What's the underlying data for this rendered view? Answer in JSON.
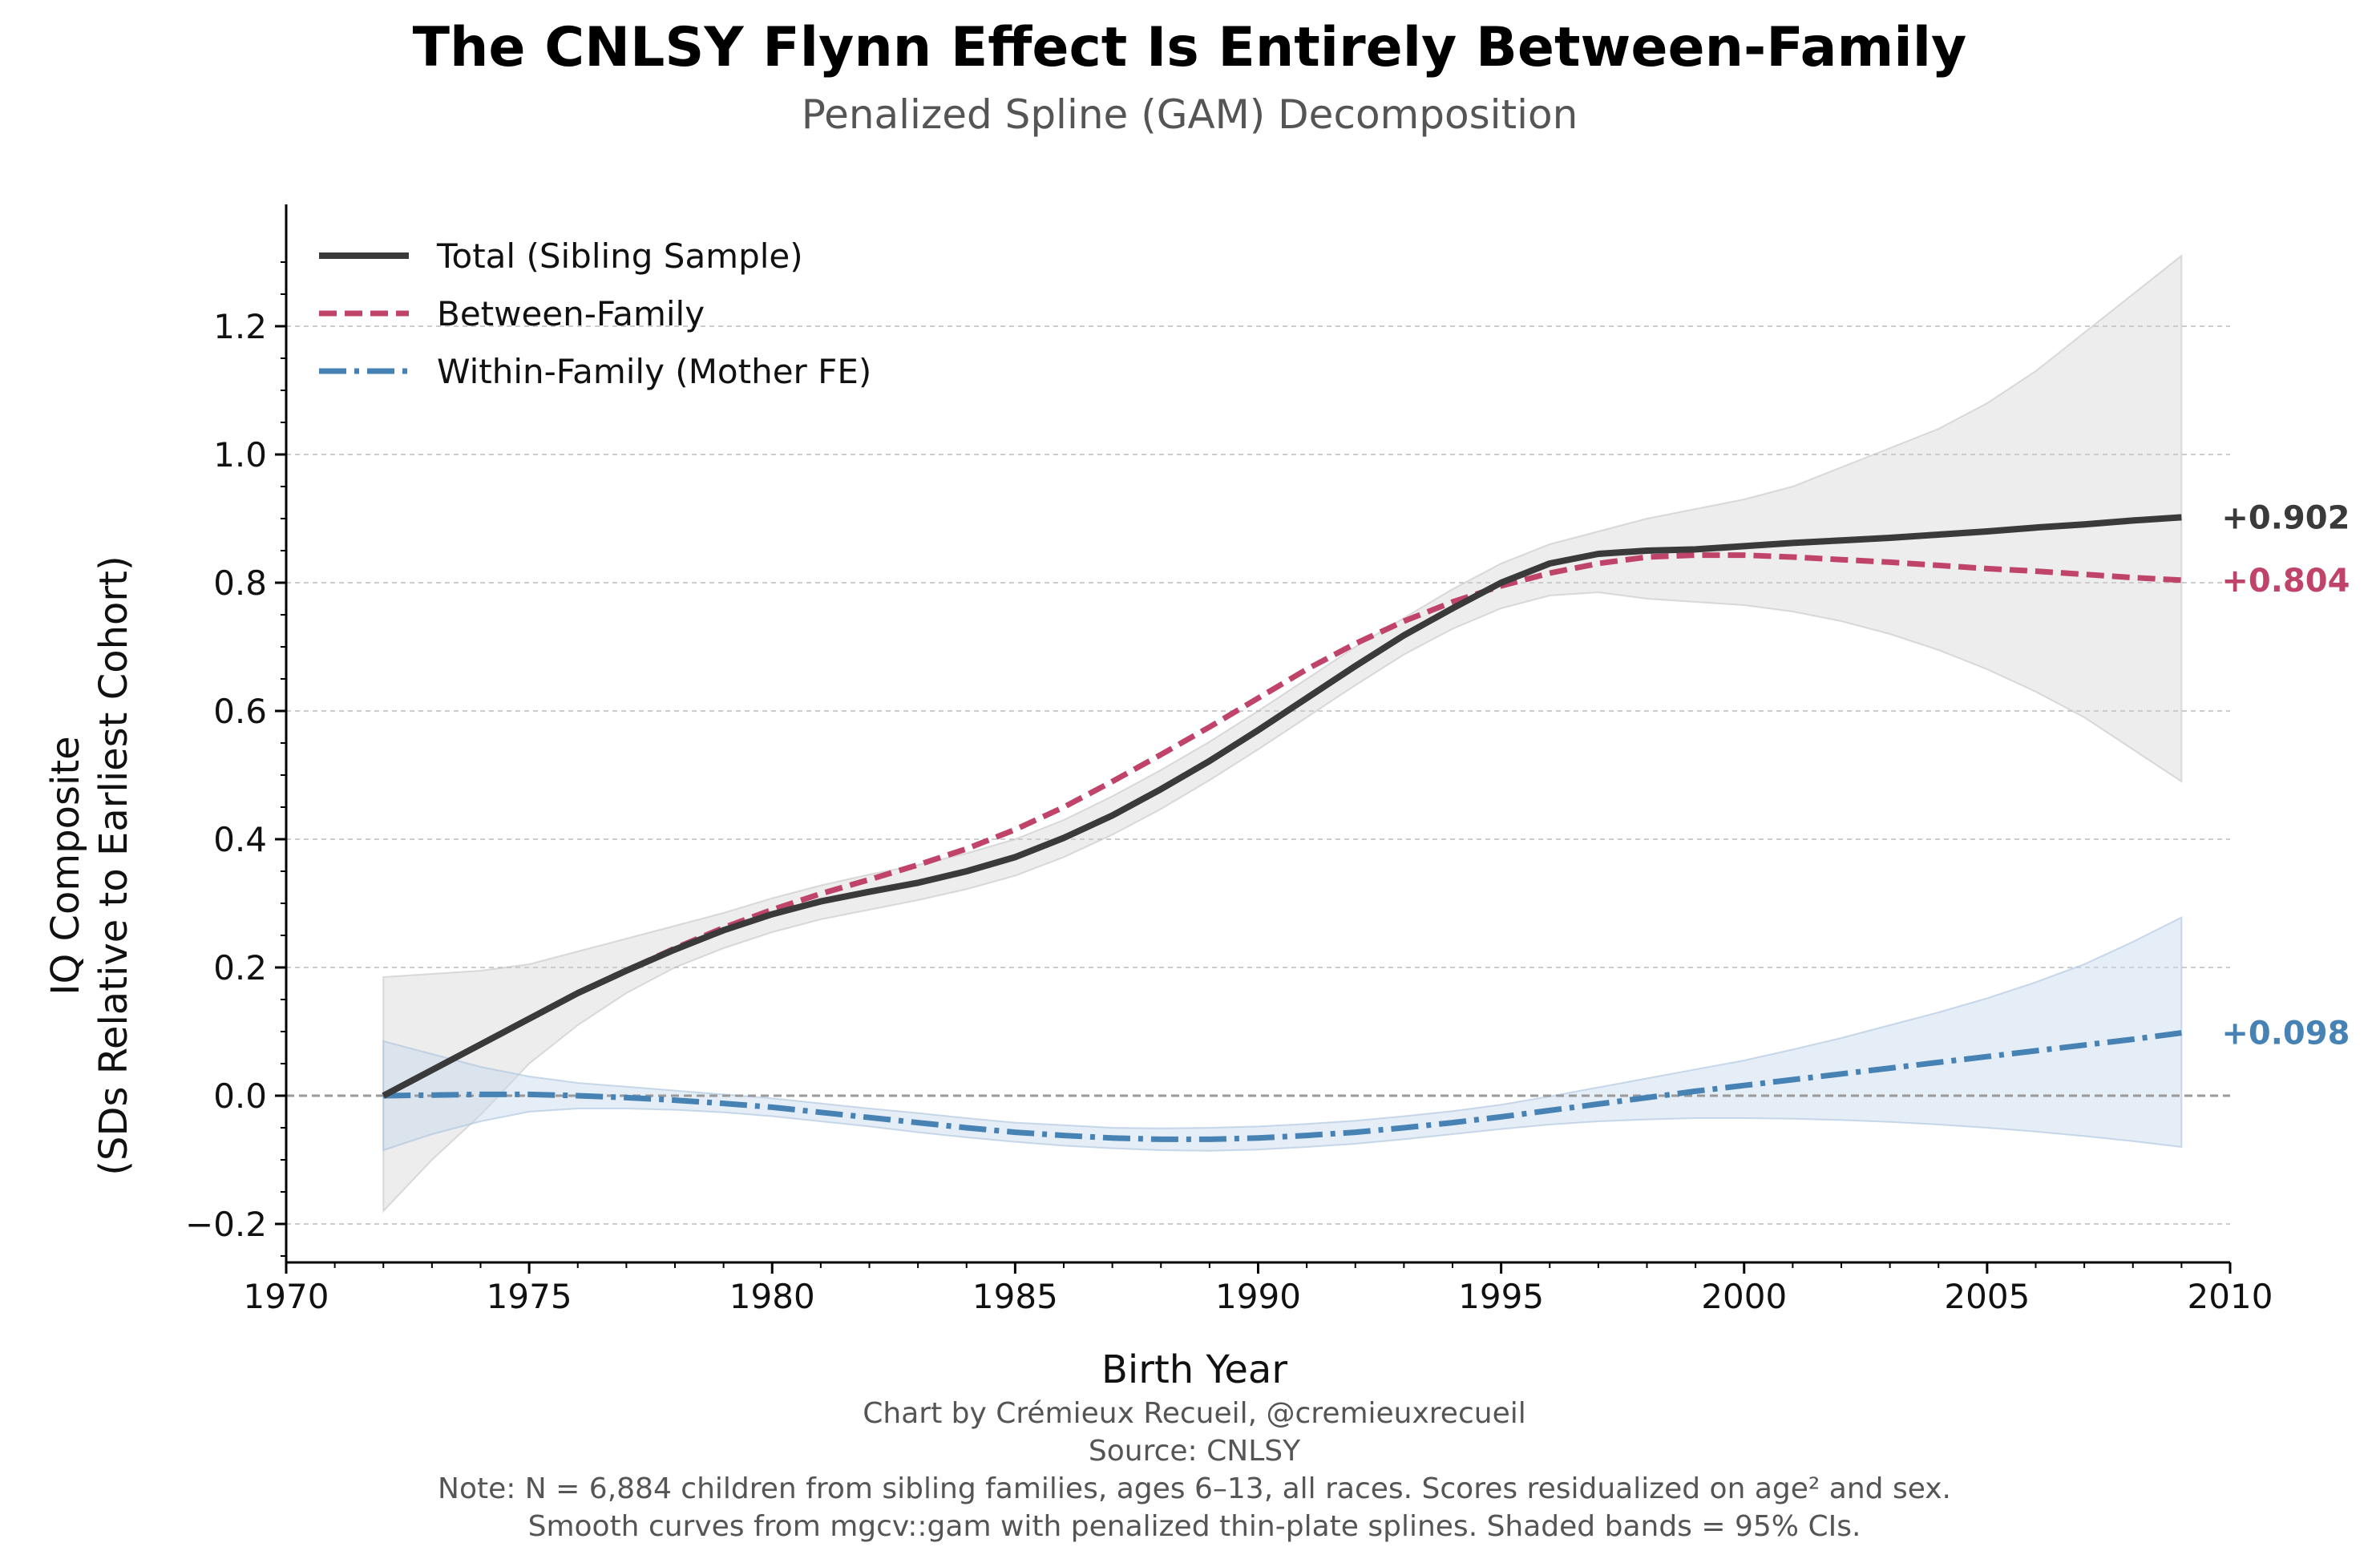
{
  "chart_data": {
    "type": "line",
    "title": "The CNLSY Flynn Effect Is Entirely Between-Family",
    "subtitle": "Penalized Spline (GAM) Decomposition",
    "xlabel": "Birth Year",
    "ylabel_line1": "IQ Composite",
    "ylabel_line2": "(SDs Relative to Earliest Cohort)",
    "xlim": [
      1970,
      2010
    ],
    "ylim": [
      -0.26,
      1.39
    ],
    "x_ticks": [
      1970,
      1975,
      1980,
      1985,
      1990,
      1995,
      2000,
      2005,
      2010
    ],
    "y_ticks": [
      -0.2,
      0.0,
      0.2,
      0.4,
      0.6,
      0.8,
      1.0,
      1.2
    ],
    "y_tick_labels": [
      "−0.2",
      "0.0",
      "0.2",
      "0.4",
      "0.6",
      "0.8",
      "1.0",
      "1.2"
    ],
    "grid": "horizontal dashed",
    "legend_position": "top-left",
    "colors": {
      "total": "#3a3a3a",
      "between": "#c0446a",
      "within": "#4682b4",
      "total_band": "#cccccc",
      "within_band": "#c6d6ea"
    },
    "x": [
      1972,
      1973,
      1974,
      1975,
      1976,
      1977,
      1978,
      1979,
      1980,
      1981,
      1982,
      1983,
      1984,
      1985,
      1986,
      1987,
      1988,
      1989,
      1990,
      1991,
      1992,
      1993,
      1994,
      1995,
      1996,
      1997,
      1998,
      1999,
      2000,
      2001,
      2002,
      2003,
      2004,
      2005,
      2006,
      2007,
      2008,
      2009
    ],
    "series": [
      {
        "name": "Total (Sibling Sample)",
        "end_label": "+0.902",
        "values": [
          0.0,
          0.04,
          0.08,
          0.12,
          0.16,
          0.195,
          0.228,
          0.258,
          0.283,
          0.303,
          0.318,
          0.332,
          0.35,
          0.372,
          0.402,
          0.437,
          0.478,
          0.522,
          0.57,
          0.62,
          0.67,
          0.718,
          0.76,
          0.8,
          0.83,
          0.845,
          0.85,
          0.852,
          0.857,
          0.862,
          0.866,
          0.87,
          0.875,
          0.88,
          0.886,
          0.891,
          0.897,
          0.902
        ],
        "ci_lower": [
          -0.18,
          -0.1,
          -0.03,
          0.05,
          0.11,
          0.16,
          0.2,
          0.23,
          0.255,
          0.275,
          0.29,
          0.305,
          0.322,
          0.343,
          0.372,
          0.407,
          0.447,
          0.492,
          0.54,
          0.59,
          0.64,
          0.688,
          0.728,
          0.76,
          0.78,
          0.785,
          0.775,
          0.77,
          0.765,
          0.755,
          0.74,
          0.72,
          0.695,
          0.665,
          0.63,
          0.59,
          0.54,
          0.49
        ],
        "ci_upper": [
          0.185,
          0.19,
          0.195,
          0.205,
          0.225,
          0.245,
          0.265,
          0.285,
          0.308,
          0.328,
          0.345,
          0.36,
          0.378,
          0.4,
          0.43,
          0.467,
          0.508,
          0.552,
          0.6,
          0.65,
          0.7,
          0.745,
          0.79,
          0.83,
          0.86,
          0.88,
          0.9,
          0.915,
          0.93,
          0.95,
          0.98,
          1.01,
          1.04,
          1.08,
          1.13,
          1.19,
          1.25,
          1.31
        ]
      },
      {
        "name": "Between-Family",
        "end_label": "+0.804",
        "values": [
          0.0,
          0.04,
          0.08,
          0.12,
          0.16,
          0.195,
          0.23,
          0.262,
          0.29,
          0.315,
          0.337,
          0.36,
          0.385,
          0.415,
          0.45,
          0.49,
          0.532,
          0.575,
          0.62,
          0.665,
          0.705,
          0.74,
          0.77,
          0.795,
          0.815,
          0.83,
          0.84,
          0.843,
          0.843,
          0.84,
          0.836,
          0.832,
          0.827,
          0.822,
          0.818,
          0.813,
          0.808,
          0.804
        ]
      },
      {
        "name": "Within-Family (Mother FE)",
        "end_label": "+0.098",
        "values": [
          0.0,
          0.001,
          0.002,
          0.002,
          0.0,
          -0.003,
          -0.007,
          -0.012,
          -0.018,
          -0.026,
          -0.034,
          -0.042,
          -0.05,
          -0.057,
          -0.062,
          -0.066,
          -0.068,
          -0.068,
          -0.066,
          -0.062,
          -0.057,
          -0.05,
          -0.042,
          -0.033,
          -0.023,
          -0.013,
          -0.003,
          0.007,
          0.016,
          0.025,
          0.034,
          0.043,
          0.052,
          0.061,
          0.07,
          0.079,
          0.088,
          0.098
        ],
        "ci_lower": [
          -0.085,
          -0.06,
          -0.04,
          -0.025,
          -0.02,
          -0.02,
          -0.022,
          -0.026,
          -0.032,
          -0.04,
          -0.048,
          -0.057,
          -0.065,
          -0.072,
          -0.078,
          -0.082,
          -0.085,
          -0.086,
          -0.084,
          -0.08,
          -0.075,
          -0.068,
          -0.06,
          -0.052,
          -0.045,
          -0.04,
          -0.037,
          -0.035,
          -0.035,
          -0.036,
          -0.038,
          -0.041,
          -0.045,
          -0.05,
          -0.056,
          -0.063,
          -0.071,
          -0.08
        ],
        "ci_upper": [
          0.085,
          0.065,
          0.045,
          0.03,
          0.02,
          0.014,
          0.008,
          0.002,
          -0.004,
          -0.012,
          -0.02,
          -0.027,
          -0.035,
          -0.042,
          -0.046,
          -0.05,
          -0.051,
          -0.05,
          -0.048,
          -0.044,
          -0.039,
          -0.032,
          -0.024,
          -0.014,
          -0.001,
          0.013,
          0.027,
          0.041,
          0.055,
          0.072,
          0.09,
          0.11,
          0.13,
          0.152,
          0.177,
          0.205,
          0.24,
          0.278
        ]
      }
    ],
    "footer": [
      "Chart by Crémieux Recueil, @cremieuxrecueil",
      "Source: CNLSY",
      "Note: N = 6,884 children from sibling families, ages 6–13, all races. Scores residualized on age² and sex.",
      "Smooth curves from mgcv::gam with penalized thin-plate splines. Shaded bands = 95% CIs."
    ]
  }
}
